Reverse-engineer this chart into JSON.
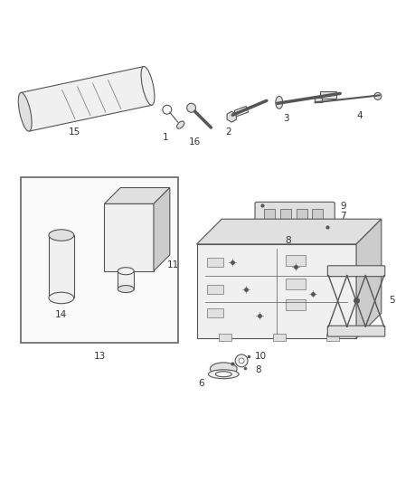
{
  "background_color": "#ffffff",
  "figsize": [
    4.38,
    5.33
  ],
  "dpi": 100,
  "line_color": "#555555",
  "label_color": "#333333",
  "label_fontsize": 7.5
}
